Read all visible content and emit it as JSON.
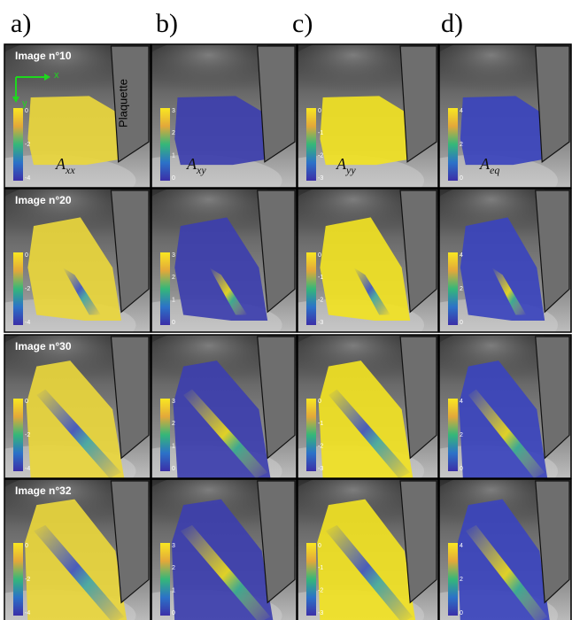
{
  "columns": [
    {
      "label": "a)",
      "symbol": "A",
      "subscript": "xx",
      "colorbar_ticks": [
        0,
        -2,
        -4
      ]
    },
    {
      "label": "b)",
      "symbol": "A",
      "subscript": "xy",
      "colorbar_ticks": [
        3,
        2,
        1,
        0
      ]
    },
    {
      "label": "c)",
      "symbol": "A",
      "subscript": "yy",
      "colorbar_ticks": [
        0,
        -1,
        -2,
        -3
      ]
    },
    {
      "label": "d)",
      "symbol": "A",
      "subscript": "eq",
      "colorbar_ticks": [
        4,
        2,
        0
      ]
    }
  ],
  "rows": [
    {
      "label": "Image n°10"
    },
    {
      "label": "Image n°20"
    },
    {
      "label": "Image n°30"
    },
    {
      "label": "Image n°32"
    }
  ],
  "plaquette": "Plaquette",
  "axes": {
    "x": "x",
    "y": "y"
  }
}
